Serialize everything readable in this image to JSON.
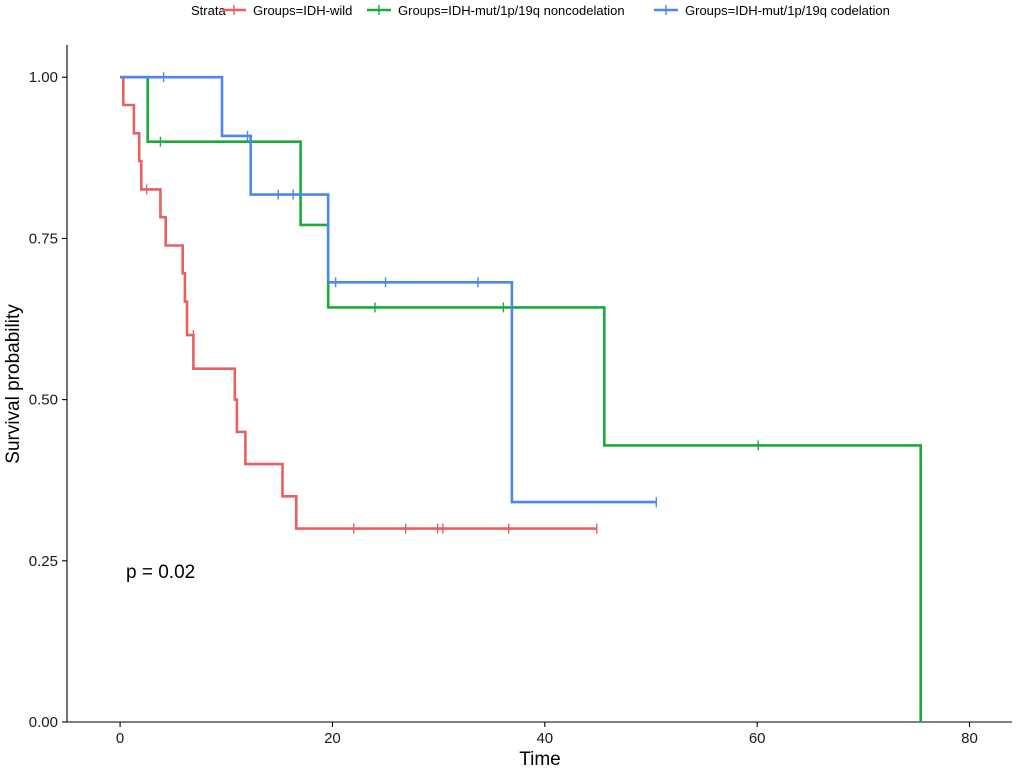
{
  "chart_data": {
    "type": "step",
    "title": "",
    "xlabel": "Time",
    "ylabel": "Survival probability",
    "xlim": [
      -5,
      84
    ],
    "ylim": [
      0,
      1.05
    ],
    "xticks": [
      0,
      20,
      40,
      60,
      80
    ],
    "yticks": [
      0,
      0.25,
      0.5,
      0.75,
      1.0
    ],
    "ytick_labels": [
      "0.00",
      "0.25",
      "0.50",
      "0.75",
      "1.00"
    ],
    "grid": false,
    "legend": {
      "title": "Strata",
      "position": "top"
    },
    "annotation": "p = 0.02",
    "series": [
      {
        "name": "Groups=IDH-wild",
        "color": "#e8615f",
        "steps": [
          [
            0,
            1.0
          ],
          [
            0.3,
            0.957
          ],
          [
            1.3,
            0.913
          ],
          [
            1.8,
            0.87
          ],
          [
            2.0,
            0.826
          ],
          [
            3.8,
            0.783
          ],
          [
            4.3,
            0.739
          ],
          [
            5.9,
            0.696
          ],
          [
            6.1,
            0.652
          ],
          [
            6.3,
            0.6
          ],
          [
            6.9,
            0.548
          ],
          [
            10.8,
            0.5
          ],
          [
            11.0,
            0.45
          ],
          [
            11.8,
            0.4
          ],
          [
            15.3,
            0.35
          ],
          [
            16.6,
            0.3
          ],
          [
            44.9,
            0.3
          ]
        ],
        "censored": [
          [
            2.5,
            0.826
          ],
          [
            6.9,
            0.6
          ],
          [
            22.0,
            0.3
          ],
          [
            26.9,
            0.3
          ],
          [
            29.9,
            0.3
          ],
          [
            30.4,
            0.3
          ],
          [
            36.6,
            0.3
          ],
          [
            44.9,
            0.3
          ]
        ]
      },
      {
        "name": "Groups=IDH-mut/1p/19q noncodelation",
        "color": "#1aab38",
        "steps": [
          [
            0,
            1.0
          ],
          [
            2.6,
            0.9
          ],
          [
            17.0,
            0.771
          ],
          [
            19.6,
            0.643
          ],
          [
            45.6,
            0.429
          ],
          [
            75.4,
            0.0
          ]
        ],
        "censored": [
          [
            3.8,
            0.9
          ],
          [
            24.0,
            0.643
          ],
          [
            36.1,
            0.643
          ],
          [
            60.1,
            0.429
          ]
        ]
      },
      {
        "name": "Groups=IDH-mut/1p/19q codelation",
        "color": "#4d86ec",
        "steps": [
          [
            0,
            1.0
          ],
          [
            9.6,
            0.909
          ],
          [
            12.3,
            0.818
          ],
          [
            19.6,
            0.682
          ],
          [
            36.9,
            0.341
          ],
          [
            50.5,
            0.341
          ]
        ],
        "censored": [
          [
            4.1,
            1.0
          ],
          [
            12.0,
            0.909
          ],
          [
            14.9,
            0.818
          ],
          [
            16.3,
            0.818
          ],
          [
            20.3,
            0.682
          ],
          [
            25.0,
            0.682
          ],
          [
            33.7,
            0.682
          ],
          [
            50.5,
            0.341
          ]
        ]
      }
    ]
  }
}
